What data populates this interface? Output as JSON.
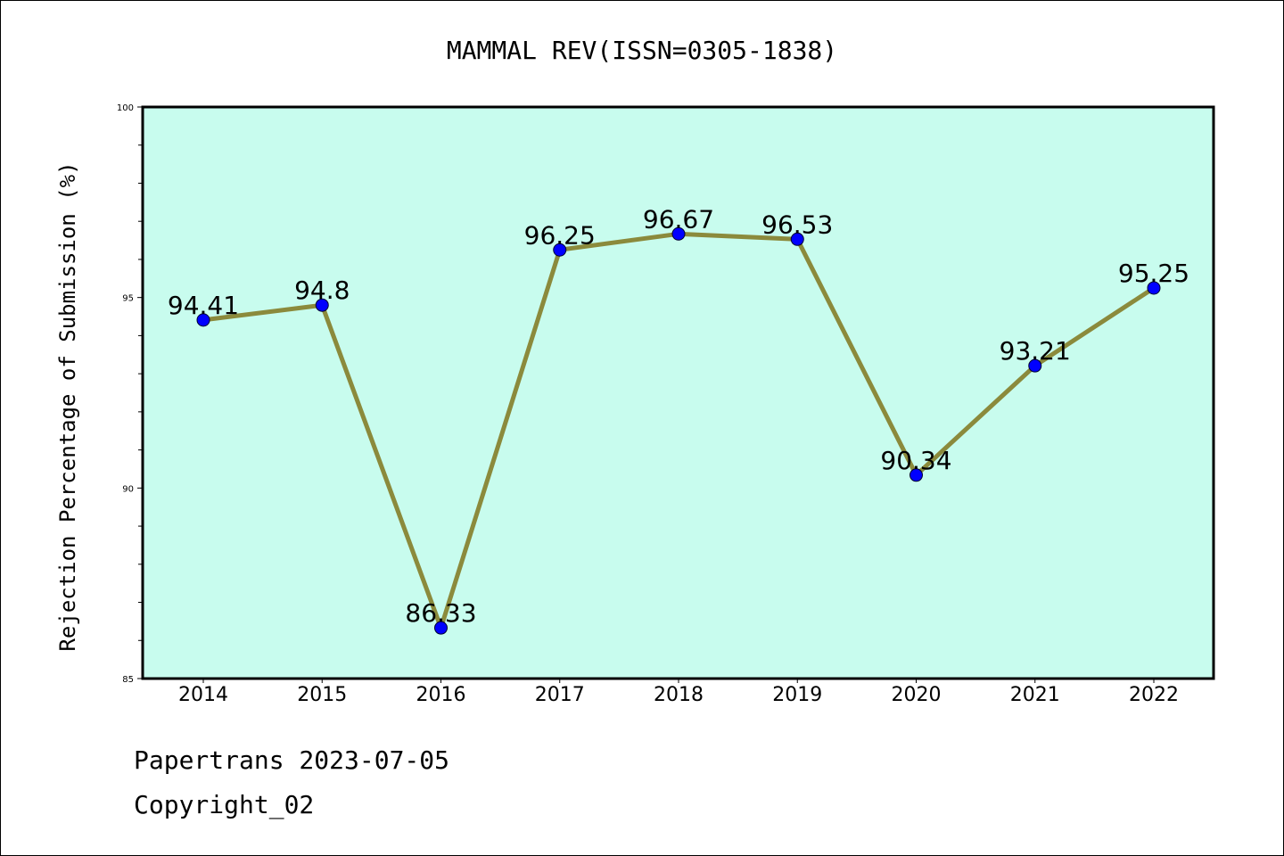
{
  "chart_data": {
    "type": "line",
    "title": "MAMMAL REV(ISSN=0305-1838)",
    "xlabel": "",
    "ylabel": "Rejection Percentage of Submission (%)",
    "categories": [
      "2014",
      "2015",
      "2016",
      "2017",
      "2018",
      "2019",
      "2020",
      "2021",
      "2022"
    ],
    "series": [
      {
        "values": [
          94.41,
          94.8,
          86.33,
          96.25,
          96.67,
          96.53,
          90.34,
          93.21,
          95.25
        ],
        "data_labels": [
          "94.41",
          "94.8",
          "86.33",
          "96.25",
          "96.67",
          "96.53",
          "90.34",
          "93.21",
          "95.25"
        ]
      }
    ],
    "ylim": [
      85,
      100
    ],
    "yticks": [
      "85",
      "90",
      "95",
      "100"
    ],
    "grid": false,
    "colors": {
      "plot_background": "#c8fcee",
      "line": "#8b8a3c",
      "marker": "#0000ff"
    }
  },
  "footer": {
    "line1": "Papertrans 2023-07-05",
    "line2": "Copyright_02"
  }
}
